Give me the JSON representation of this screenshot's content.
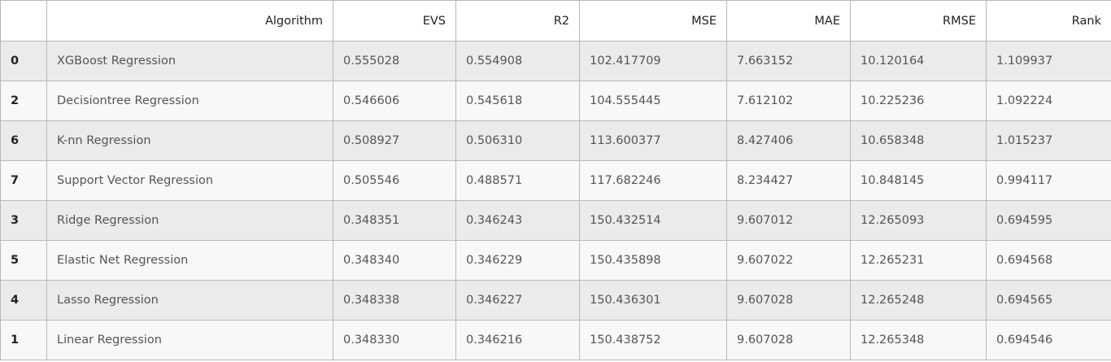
{
  "table": {
    "columns": [
      "",
      "Algorithm",
      "EVS",
      "R2",
      "MSE",
      "MAE",
      "RMSE",
      "Rank"
    ],
    "rows": [
      {
        "index": "0",
        "cells": [
          "XGBoost Regression",
          "0.555028",
          "0.554908",
          "102.417709",
          "7.663152",
          "10.120164",
          "1.109937"
        ]
      },
      {
        "index": "2",
        "cells": [
          "Decisiontree Regression",
          "0.546606",
          "0.545618",
          "104.555445",
          "7.612102",
          "10.225236",
          "1.092224"
        ]
      },
      {
        "index": "6",
        "cells": [
          "K-nn Regression",
          "0.508927",
          "0.506310",
          "113.600377",
          "8.427406",
          "10.658348",
          "1.015237"
        ]
      },
      {
        "index": "7",
        "cells": [
          "Support Vector Regression",
          "0.505546",
          "0.488571",
          "117.682246",
          "8.234427",
          "10.848145",
          "0.994117"
        ]
      },
      {
        "index": "3",
        "cells": [
          "Ridge Regression",
          "0.348351",
          "0.346243",
          "150.432514",
          "9.607012",
          "12.265093",
          "0.694595"
        ]
      },
      {
        "index": "5",
        "cells": [
          "Elastic Net Regression",
          "0.348340",
          "0.346229",
          "150.435898",
          "9.607022",
          "12.265231",
          "0.694568"
        ]
      },
      {
        "index": "4",
        "cells": [
          "Lasso Regression",
          "0.348338",
          "0.346227",
          "150.436301",
          "9.607028",
          "12.265248",
          "0.694565"
        ]
      },
      {
        "index": "1",
        "cells": [
          "Linear Regression",
          "0.348330",
          "0.346216",
          "150.438752",
          "9.607028",
          "12.265348",
          "0.694546"
        ]
      }
    ]
  }
}
